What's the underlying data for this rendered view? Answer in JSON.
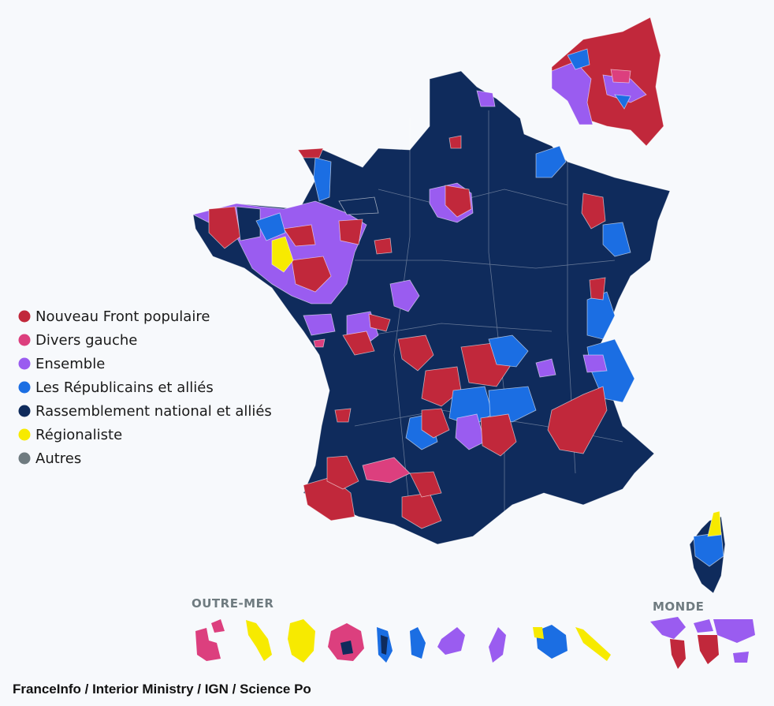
{
  "legend": [
    {
      "label": "Nouveau Front populaire",
      "color": "#c1283b"
    },
    {
      "label": "Divers gauche",
      "color": "#dc3f7e"
    },
    {
      "label": "Ensemble",
      "color": "#9a5cf0"
    },
    {
      "label": "Les Républicains et alliés",
      "color": "#1b6ee3"
    },
    {
      "label": "Rassemblement national et alliés",
      "color": "#0f2b5c"
    },
    {
      "label": "Régionaliste",
      "color": "#f7ea00"
    },
    {
      "label": "Autres",
      "color": "#6f7b80"
    }
  ],
  "insets": {
    "outre_mer": "OUTRE-MER",
    "monde": "MONDE"
  },
  "source": "FranceInfo / Interior Ministry / IGN / Science Po"
}
